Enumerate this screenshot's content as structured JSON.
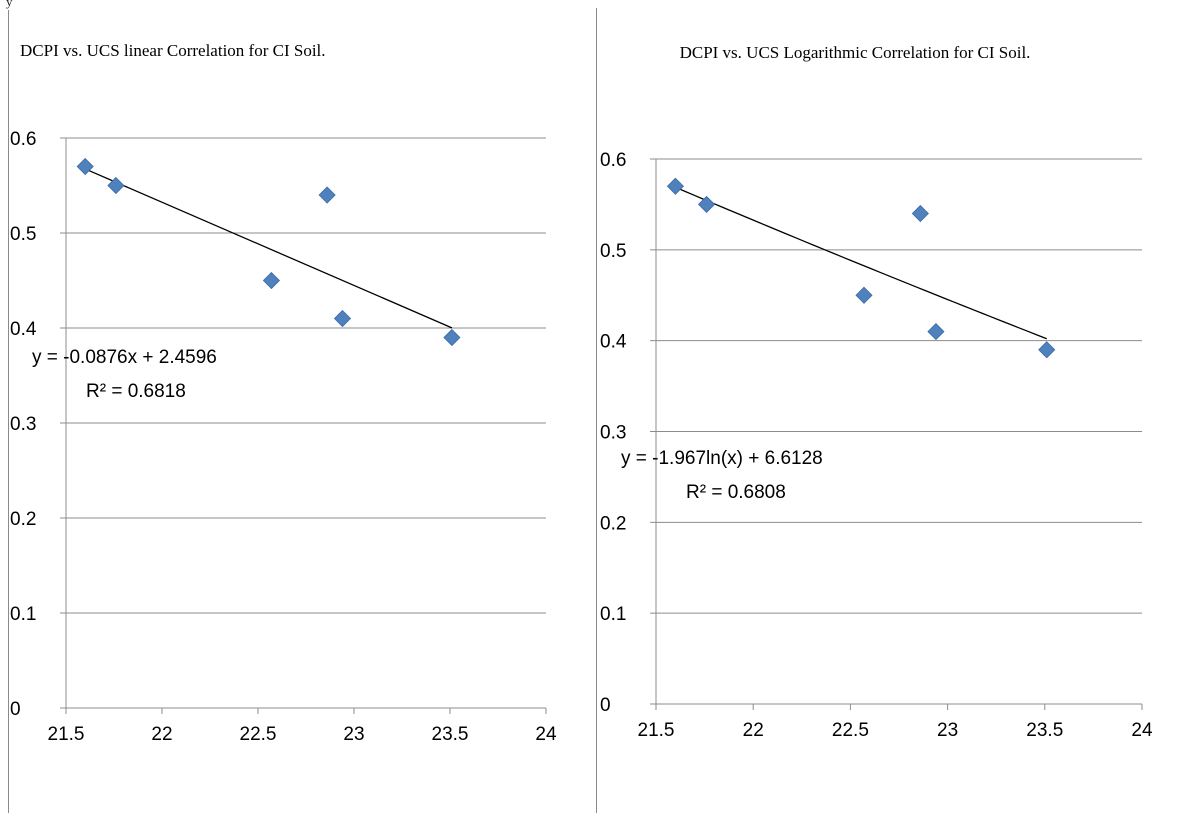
{
  "page": {
    "header_fragment": "y"
  },
  "chart_data": [
    {
      "type": "scatter",
      "title": "DCPI vs. UCS linear Correlation for CI Soil.",
      "xlabel": "",
      "ylabel": "",
      "xlim": [
        21.5,
        24
      ],
      "ylim": [
        0,
        0.6
      ],
      "x_ticks": [
        "21.5",
        "22",
        "22.5",
        "23",
        "23.5",
        "24"
      ],
      "y_ticks": [
        "0",
        "0.1",
        "0.2",
        "0.3",
        "0.4",
        "0.5",
        "0.6"
      ],
      "grid": "horizontal",
      "points": [
        {
          "x": 21.6,
          "y": 0.57
        },
        {
          "x": 21.76,
          "y": 0.55
        },
        {
          "x": 22.57,
          "y": 0.45
        },
        {
          "x": 22.86,
          "y": 0.54
        },
        {
          "x": 22.94,
          "y": 0.41
        },
        {
          "x": 23.51,
          "y": 0.39
        }
      ],
      "trendline": {
        "type": "linear",
        "x_range": [
          21.6,
          23.51
        ]
      },
      "equation": "y = -0.0876x + 2.4596",
      "r_squared": "R² = 0.6818",
      "marker_color": "#4f81bd"
    },
    {
      "type": "scatter",
      "title": "DCPI vs. UCS Logarithmic Correlation for CI Soil.",
      "xlabel": "",
      "ylabel": "",
      "xlim": [
        21.5,
        24
      ],
      "ylim": [
        0,
        0.6
      ],
      "x_ticks": [
        "21.5",
        "22",
        "22.5",
        "23",
        "23.5",
        "24"
      ],
      "y_ticks": [
        "0",
        "0.1",
        "0.2",
        "0.3",
        "0.4",
        "0.5",
        "0.6"
      ],
      "grid": "horizontal",
      "points": [
        {
          "x": 21.6,
          "y": 0.57
        },
        {
          "x": 21.76,
          "y": 0.55
        },
        {
          "x": 22.57,
          "y": 0.45
        },
        {
          "x": 22.86,
          "y": 0.54
        },
        {
          "x": 22.94,
          "y": 0.41
        },
        {
          "x": 23.51,
          "y": 0.39
        }
      ],
      "trendline": {
        "type": "logarithmic",
        "x_range": [
          21.6,
          23.51
        ]
      },
      "equation": "y = -1.967ln(x) + 6.6128",
      "r_squared": "R² = 0.6808",
      "marker_color": "#4f81bd"
    }
  ]
}
